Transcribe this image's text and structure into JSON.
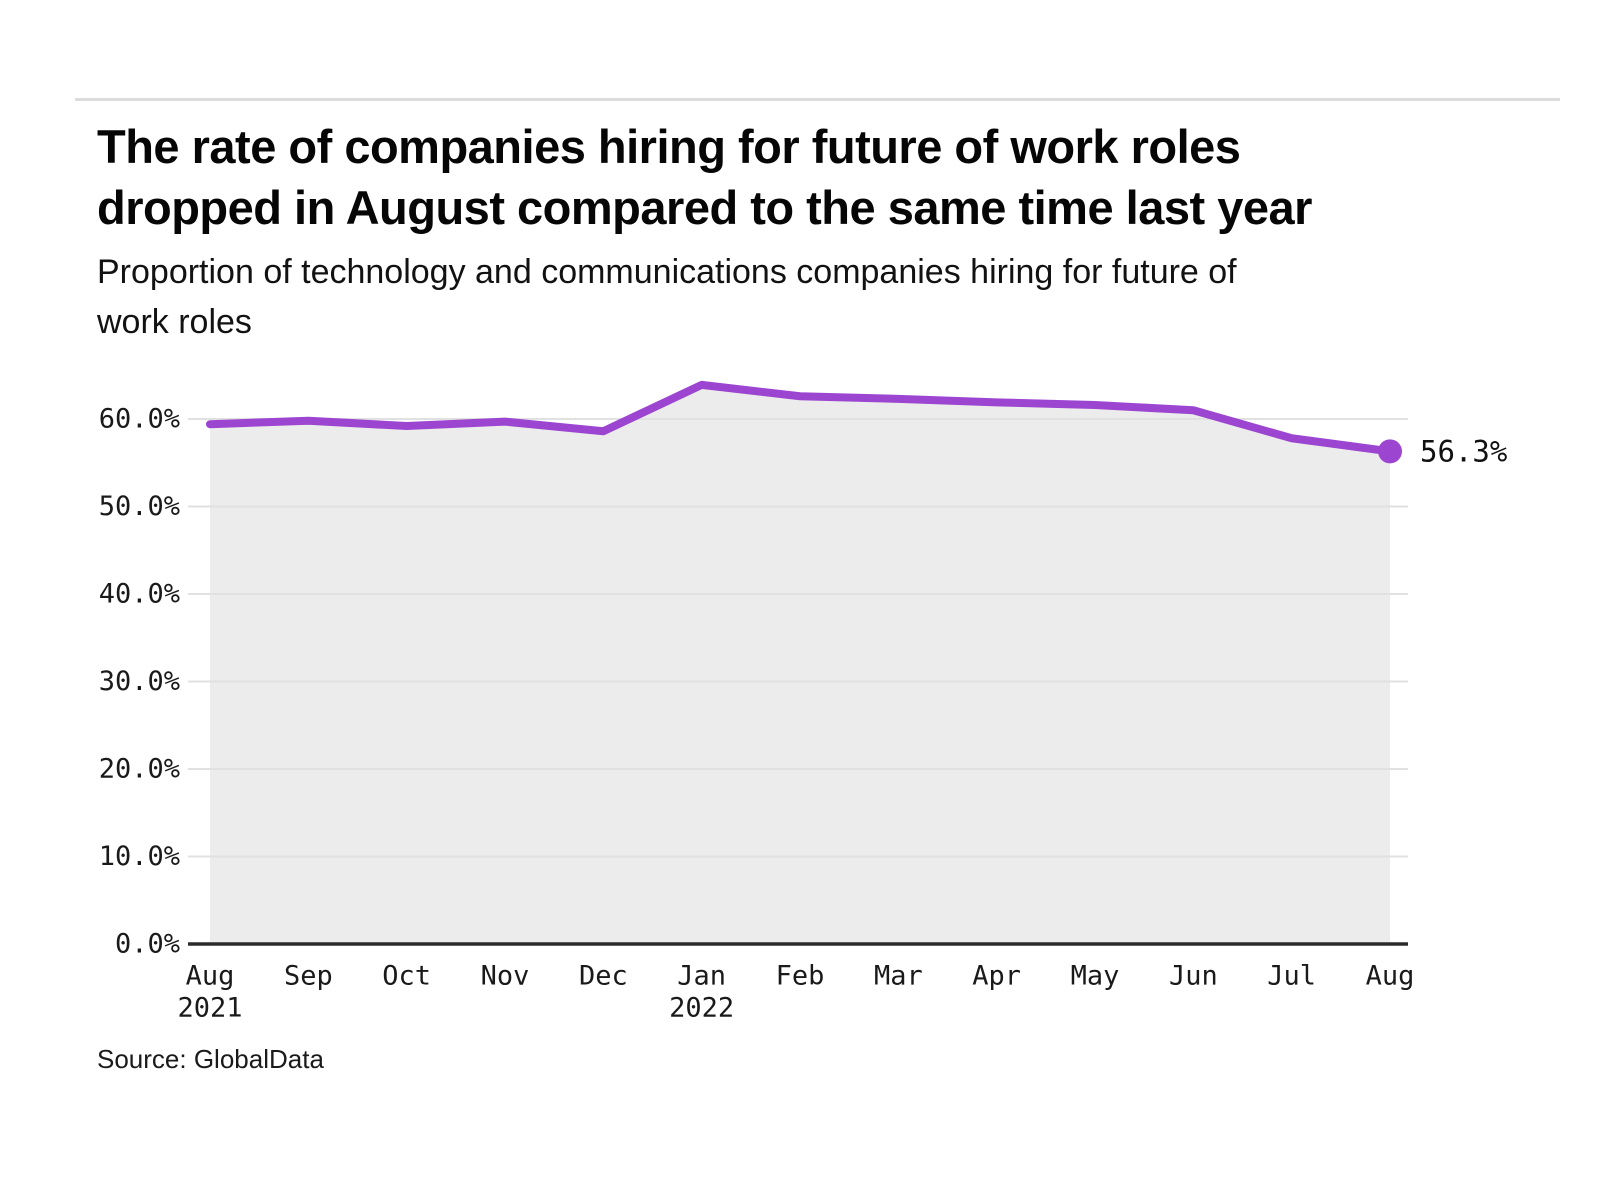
{
  "header": {
    "title_lines": [
      "The rate of companies hiring for future of work roles",
      "dropped in August compared to the same time last year"
    ],
    "subtitle_lines": [
      "Proportion of technology and communications companies hiring for future of",
      "work roles"
    ]
  },
  "footer": {
    "source": "Source: GlobalData"
  },
  "chart_data": {
    "type": "area",
    "title": "The rate of companies hiring for future of work roles dropped in August compared to the same time last year",
    "subtitle": "Proportion of technology and communications companies hiring for future of work roles",
    "x": [
      "Aug 2021",
      "Sep",
      "Oct",
      "Nov",
      "Dec",
      "Jan 2022",
      "Feb",
      "Mar",
      "Apr",
      "May",
      "Jun",
      "Jul",
      "Aug"
    ],
    "xtick_labels": [
      "Aug",
      "Sep",
      "Oct",
      "Nov",
      "Dec",
      "Jan",
      "Feb",
      "Mar",
      "Apr",
      "May",
      "Jun",
      "Jul",
      "Aug"
    ],
    "xtick_sublabels": [
      "2021",
      "",
      "",
      "",
      "",
      "2022",
      "",
      "",
      "",
      "",
      "",
      "",
      ""
    ],
    "series": [
      {
        "name": "Proportion of technology and communications companies hiring for future of work roles",
        "values": [
          59.4,
          59.8,
          59.2,
          59.7,
          58.6,
          63.9,
          62.6,
          62.3,
          61.9,
          61.6,
          61.0,
          57.8,
          56.3
        ]
      }
    ],
    "end_label": "56.3%",
    "ylim": [
      0,
      65
    ],
    "yticks": [
      0,
      10,
      20,
      30,
      40,
      50,
      60
    ],
    "ytick_labels": [
      "0.0%",
      "10.0%",
      "20.0%",
      "30.0%",
      "40.0%",
      "50.0%",
      "60.0%"
    ],
    "grid": "horizontal",
    "legend": "none",
    "colors": {
      "line": "#9b45d1",
      "area": "#ececec",
      "grid": "#e1e1e1",
      "axis": "#2b2b2b",
      "tick_text": "#1a1a1a",
      "end_label_text": "#111111"
    }
  }
}
